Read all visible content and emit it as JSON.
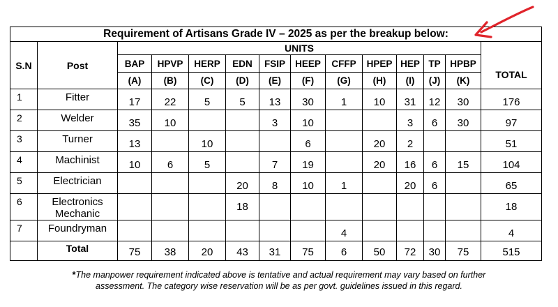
{
  "title": "Requirement of Artisans Grade IV – 2025 as per the breakup below:",
  "units_label": "UNITS",
  "headers": {
    "sn": "S.N",
    "post": "Post",
    "total": "TOTAL"
  },
  "units": [
    {
      "name": "BAP",
      "code": "(A)"
    },
    {
      "name": "HPVP",
      "code": "(B)"
    },
    {
      "name": "HERP",
      "code": "(C)"
    },
    {
      "name": "EDN",
      "code": "(D)"
    },
    {
      "name": "FSIP",
      "code": "(E)"
    },
    {
      "name": "HEEP",
      "code": "(F)"
    },
    {
      "name": "CFFP",
      "code": "(G)"
    },
    {
      "name": "HPEP",
      "code": "(H)"
    },
    {
      "name": "HEP",
      "code": "(I)"
    },
    {
      "name": "TP",
      "code": "(J)"
    },
    {
      "name": "HPBP",
      "code": "(K)"
    }
  ],
  "rows": [
    {
      "sn": "1",
      "post": "Fitter",
      "values": [
        "17",
        "22",
        "5",
        "5",
        "13",
        "30",
        "1",
        "10",
        "31",
        "12",
        "30"
      ],
      "total": "176"
    },
    {
      "sn": "2",
      "post": "Welder",
      "values": [
        "35",
        "10",
        "",
        "",
        "3",
        "10",
        "",
        "",
        "3",
        "6",
        "30"
      ],
      "total": "97"
    },
    {
      "sn": "3",
      "post": "Turner",
      "values": [
        "13",
        "",
        "10",
        "",
        "",
        "6",
        "",
        "20",
        "2",
        "",
        ""
      ],
      "total": "51"
    },
    {
      "sn": "4",
      "post": "Machinist",
      "values": [
        "10",
        "6",
        "5",
        "",
        "7",
        "19",
        "",
        "20",
        "16",
        "6",
        "15"
      ],
      "total": "104"
    },
    {
      "sn": "5",
      "post": "Electrician",
      "values": [
        "",
        "",
        "",
        "20",
        "8",
        "10",
        "1",
        "",
        "20",
        "6",
        ""
      ],
      "total": "65"
    },
    {
      "sn": "6",
      "post": "Electronics\nMechanic",
      "values": [
        "",
        "",
        "",
        "18",
        "",
        "",
        "",
        "",
        "",
        "",
        ""
      ],
      "total": "18"
    },
    {
      "sn": "7",
      "post": "Foundryman",
      "values": [
        "",
        "",
        "",
        "",
        "",
        "",
        "4",
        "",
        "",
        "",
        ""
      ],
      "total": "4"
    }
  ],
  "total_row": {
    "label": "Total",
    "values": [
      "75",
      "38",
      "20",
      "43",
      "31",
      "75",
      "6",
      "50",
      "72",
      "30",
      "75"
    ],
    "total": "515"
  },
  "footnote": {
    "mark": "*",
    "text": "The manpower requirement indicated above is tentative and actual requirement may vary based on further assessment. The category wise reservation will be as per govt. guidelines issued in this regard."
  },
  "colors": {
    "annotation_arrow": "#e0242b",
    "border": "#000000"
  }
}
